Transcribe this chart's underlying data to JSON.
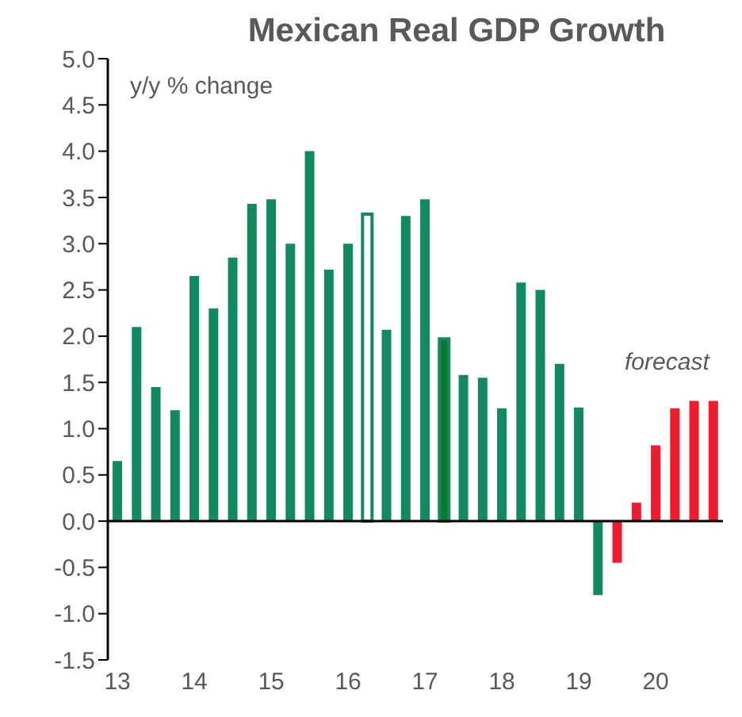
{
  "chart_data": {
    "type": "bar",
    "title": "Mexican Real GDP Growth",
    "annotations": [
      "y/y % change",
      "forecast"
    ],
    "categories": [
      "13",
      null,
      null,
      null,
      "14",
      null,
      null,
      null,
      "15",
      null,
      null,
      null,
      "16",
      null,
      null,
      null,
      "17",
      null,
      null,
      null,
      "18",
      null,
      null,
      null,
      "19",
      null,
      null,
      null,
      "20",
      null,
      null,
      null
    ],
    "series": [
      {
        "color": "#108a5e",
        "values": [
          0.65,
          2.1,
          1.45,
          1.2,
          2.65,
          2.3,
          2.85,
          3.43,
          3.48,
          3.0,
          4.0,
          2.72,
          3.0,
          3.32,
          2.07,
          3.3,
          3.48,
          1.97,
          1.58,
          1.55,
          1.22,
          2.58,
          2.5,
          1.7,
          1.23,
          -0.8,
          -0.45,
          0.2,
          0.82,
          1.22,
          1.3,
          1.3
        ],
        "colors": [
          "#108a5e",
          "#108a5e",
          "#108a5e",
          "#108a5e",
          "#108a5e",
          "#108a5e",
          "#108a5e",
          "#108a5e",
          "#108a5e",
          "#108a5e",
          "#108a5e",
          "#108a5e",
          "#108a5e",
          "#ffffff",
          "#108a5e",
          "#108a5e",
          "#108a5e",
          "#0b7a2e",
          "#108a5e",
          "#108a5e",
          "#108a5e",
          "#108a5e",
          "#108a5e",
          "#108a5e",
          "#108a5e",
          "#108a5e",
          "#ee1c2e",
          "#ee1c2e",
          "#ee1c2e",
          "#ee1c2e",
          "#ee1c2e",
          "#ee1c2e"
        ]
      }
    ],
    "ylim": [
      -1.5,
      5.0
    ],
    "yticks": [
      {
        "value": -1.5,
        "label": "-1.5"
      },
      {
        "value": -1,
        "label": "-1.0"
      },
      {
        "value": -0.5,
        "label": "-0.5"
      },
      {
        "value": 0,
        "label": "0.0"
      },
      {
        "value": 0.5,
        "label": "0.5"
      },
      {
        "value": 1,
        "label": "1.0"
      },
      {
        "value": 1.5,
        "label": "1.5"
      },
      {
        "value": 2,
        "label": "2.0"
      },
      {
        "value": 2.5,
        "label": "2.5"
      },
      {
        "value": 3,
        "label": "3.0"
      },
      {
        "value": 3.5,
        "label": "3.5"
      },
      {
        "value": 4,
        "label": "4.0"
      },
      {
        "value": 4.5,
        "label": "4.5"
      },
      {
        "value": 5,
        "label": "5.0"
      }
    ],
    "ref_lines": [
      {
        "axis": "y",
        "value": 0,
        "color": "#000000"
      }
    ],
    "grid": false
  }
}
